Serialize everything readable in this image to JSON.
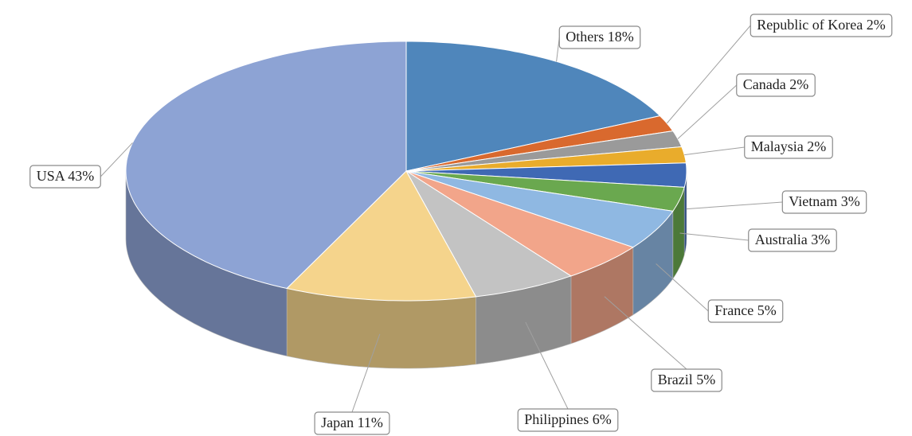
{
  "chart_data": {
    "type": "pie3d",
    "values": [
      18,
      2,
      2,
      2,
      3,
      3,
      5,
      5,
      6,
      11,
      43
    ],
    "value_labels": [
      "Others 18%",
      "Republic of Korea 2%",
      "Canada 2%",
      "Malaysia 2%",
      "Vietnam 3%",
      "Australia 3%",
      "France 5%",
      "Brazil 5%",
      "Philippines 6%",
      "Japan 11%",
      "USA 43%"
    ],
    "colors": [
      "#4f86bb",
      "#d9692e",
      "#9a9a9a",
      "#e9ac2c",
      "#3f69b4",
      "#6aa84f",
      "#8fb8e2",
      "#f2a58a",
      "#c3c3c3",
      "#f5d48c",
      "#8da3d4"
    ]
  }
}
